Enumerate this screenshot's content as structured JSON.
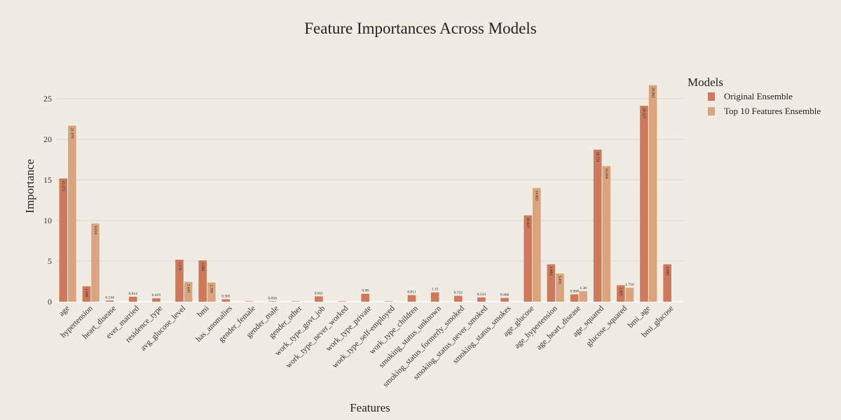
{
  "chart_data": {
    "type": "bar",
    "title": "Feature Importances Across Models",
    "xlabel": "Features",
    "ylabel": "Importance",
    "ylim": [
      0,
      27.5
    ],
    "yticks": [
      0,
      5,
      10,
      15,
      20,
      25
    ],
    "grid": true,
    "legend": {
      "title": "Models",
      "position": "top-right"
    },
    "categories": [
      "age",
      "hypertension",
      "heart_disease",
      "ever_married",
      "residence_type",
      "avg_glucose_level",
      "bmi",
      "has_anomalies",
      "gender_female",
      "gender_male",
      "gender_other",
      "work_type_govt_job",
      "work_type_never_worked",
      "work_type_private",
      "work_type_self-employed",
      "work_type_children",
      "smoking_status_unknown",
      "smoking_status_formerly_smoked",
      "smoking_status_never_smoked",
      "smoking_status_smokes",
      "age_glucose",
      "age_hypertension",
      "age_heart_disease",
      "age_squared",
      "glucose_squared",
      "bmi_age",
      "bmi_glucose"
    ],
    "series": [
      {
        "name": "Original Ensemble",
        "color": "#cd7a5c",
        "values": [
          15.173,
          1.898,
          0.144,
          0.614,
          0.419,
          5.176,
          5.084,
          0.305,
          0.015,
          0.056,
          0.012,
          0.651,
          0.008,
          0.98,
          0.01,
          0.811,
          1.15,
          0.722,
          0.533,
          0.466,
          10.637,
          4.604,
          0.908,
          18.731,
          2.025,
          24.127,
          4.606
        ],
        "labels": [
          "15.173",
          "1.898",
          "0.144",
          "0.614",
          "0.419",
          "5.176",
          "5.084",
          "0.305",
          "",
          "0.056",
          "",
          "0.651",
          "",
          "0.98",
          "",
          "0.811",
          "1.15",
          "0.722",
          "0.533",
          "0.466",
          "10.637",
          "4.604",
          "0.908",
          "18.731",
          "2.025",
          "24.127",
          "4.606"
        ]
      },
      {
        "name": "Top 10 Features Ensemble",
        "color": "#d9a47e",
        "values": [
          21.679,
          9.618,
          0,
          0,
          0,
          2.449,
          2.366,
          0,
          0,
          0,
          0,
          0,
          0,
          0,
          0,
          0,
          0,
          0,
          0,
          0,
          14.002,
          3.465,
          1.3,
          16.699,
          1.716,
          26.662,
          0
        ],
        "labels": [
          "21.679",
          "9.618",
          "",
          "",
          "",
          "2.449",
          "2.366",
          "",
          "",
          "",
          "",
          "",
          "",
          "",
          "",
          "",
          "",
          "",
          "",
          "",
          "14.002",
          "3.465",
          "1.30",
          "16.699",
          "1.716",
          "26.662",
          ""
        ]
      }
    ]
  }
}
